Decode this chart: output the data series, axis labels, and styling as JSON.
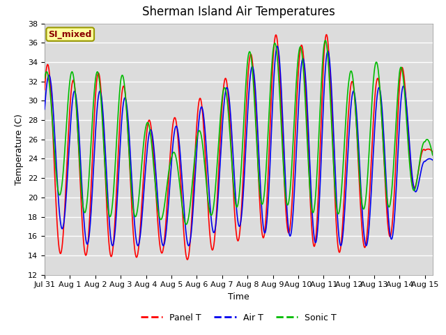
{
  "title": "Sherman Island Air Temperatures",
  "xlabel": "Time",
  "ylabel": "Temperature (C)",
  "ylim": [
    12,
    38
  ],
  "yticks": [
    12,
    14,
    16,
    18,
    20,
    22,
    24,
    26,
    28,
    30,
    32,
    34,
    36,
    38
  ],
  "xlim_start_day": 0,
  "xlim_end_day": 15.3,
  "xtick_labels": [
    "Jul 31",
    "Aug 1",
    "Aug 2",
    "Aug 3",
    "Aug 4",
    "Aug 5",
    "Aug 6",
    "Aug 7",
    "Aug 8",
    "Aug 9",
    "Aug 10",
    "Aug 11",
    "Aug 12",
    "Aug 13",
    "Aug 14",
    "Aug 15"
  ],
  "xtick_positions": [
    0,
    1,
    2,
    3,
    4,
    5,
    6,
    7,
    8,
    9,
    10,
    11,
    12,
    13,
    14,
    15
  ],
  "panel_color": "#FF0000",
  "air_color": "#0000EE",
  "sonic_color": "#00BB00",
  "legend_label": "SI_mixed",
  "bg_color": "#DCDCDC",
  "fig_bg": "#FFFFFF",
  "panel_lw": 1.2,
  "air_lw": 1.2,
  "sonic_lw": 1.2,
  "title_fontsize": 12,
  "axis_fontsize": 9,
  "tick_fontsize": 8,
  "day_maxima_panel": [
    34,
    32,
    33,
    32,
    28,
    28,
    30,
    32,
    34.5,
    37,
    35.5,
    37.5,
    32,
    32,
    34.5,
    25
  ],
  "day_minima_panel": [
    14.5,
    14,
    14,
    13.8,
    13.8,
    14.5,
    13,
    15.5,
    15.5,
    16,
    16.5,
    14,
    14.5,
    15,
    16.5,
    24
  ],
  "day_maxima_air": [
    33,
    31,
    31,
    31,
    27,
    27,
    29,
    31,
    33,
    36,
    34,
    36,
    31,
    31,
    33,
    24
  ],
  "day_minima_air": [
    19.5,
    15.5,
    15,
    15,
    15,
    15,
    15,
    17,
    17,
    16,
    16,
    15,
    15,
    15,
    16,
    23
  ],
  "day_maxima_sonic": [
    33,
    33,
    33,
    33,
    28,
    24.5,
    26.5,
    31,
    35,
    36,
    35.5,
    36.5,
    33,
    34,
    34,
    26
  ],
  "day_minima_sonic": [
    22,
    19,
    18,
    18,
    18,
    17.5,
    17,
    19,
    19,
    19.5,
    19,
    18,
    18.5,
    19,
    19,
    22
  ]
}
